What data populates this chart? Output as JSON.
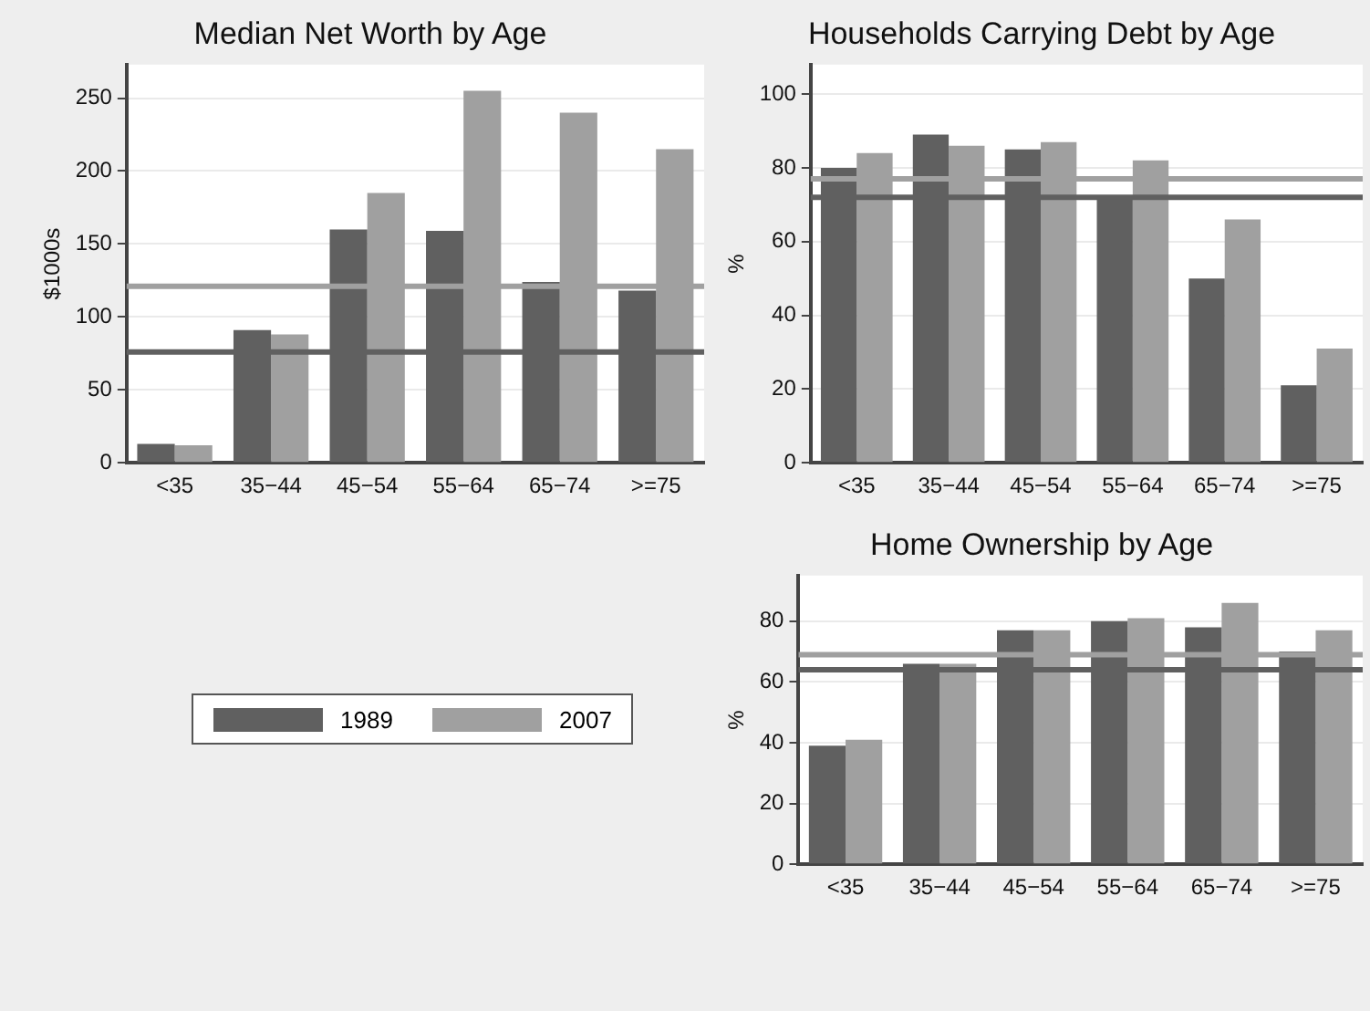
{
  "chart_data": [
    {
      "type": "bar",
      "title": "Median Net Worth by Age",
      "ylabel": "$1000s",
      "categories": [
        "<35",
        "35−44",
        "45−54",
        "55−64",
        "65−74",
        ">=75"
      ],
      "series": [
        {
          "name": "1989",
          "color": "#606060",
          "values": [
            13,
            91,
            160,
            159,
            124,
            118
          ]
        },
        {
          "name": "2007",
          "color": "#a0a0a0",
          "values": [
            12,
            88,
            185,
            255,
            240,
            215
          ]
        }
      ],
      "ylim": [
        0,
        273
      ],
      "yticks": [
        0,
        50,
        100,
        150,
        200,
        250
      ],
      "grid": "y",
      "legend": "bottom",
      "ref_lines": [
        {
          "axis": "y",
          "value": 76,
          "color": "#606060"
        },
        {
          "axis": "y",
          "value": 121,
          "color": "#a0a0a0"
        }
      ]
    },
    {
      "type": "bar",
      "title": "Households Carrying Debt by Age",
      "ylabel": "%",
      "categories": [
        "<35",
        "35−44",
        "45−54",
        "55−64",
        "65−74",
        ">=75"
      ],
      "series": [
        {
          "color": "#606060",
          "values": [
            80,
            89,
            85,
            72,
            50,
            21
          ]
        },
        {
          "color": "#a0a0a0",
          "values": [
            84,
            86,
            87,
            82,
            66,
            31
          ]
        }
      ],
      "ylim": [
        0,
        108
      ],
      "yticks": [
        0,
        20,
        40,
        60,
        80,
        100
      ],
      "grid": "y",
      "ref_lines": [
        {
          "axis": "y",
          "value": 72,
          "color": "#606060"
        },
        {
          "axis": "y",
          "value": 77,
          "color": "#a0a0a0"
        }
      ]
    },
    {
      "type": "bar",
      "title": "Home Ownership by Age",
      "ylabel": "%",
      "categories": [
        "<35",
        "35−44",
        "45−54",
        "55−64",
        "65−74",
        ">=75"
      ],
      "series": [
        {
          "color": "#606060",
          "values": [
            39,
            66,
            77,
            80,
            78,
            70
          ]
        },
        {
          "color": "#a0a0a0",
          "values": [
            41,
            66,
            77,
            81,
            86,
            77
          ]
        }
      ],
      "ylim": [
        0,
        95
      ],
      "yticks": [
        0,
        20,
        40,
        60,
        80
      ],
      "grid": "y",
      "ref_lines": [
        {
          "axis": "y",
          "value": 64,
          "color": "#606060"
        },
        {
          "axis": "y",
          "value": 69,
          "color": "#a0a0a0"
        }
      ]
    }
  ]
}
